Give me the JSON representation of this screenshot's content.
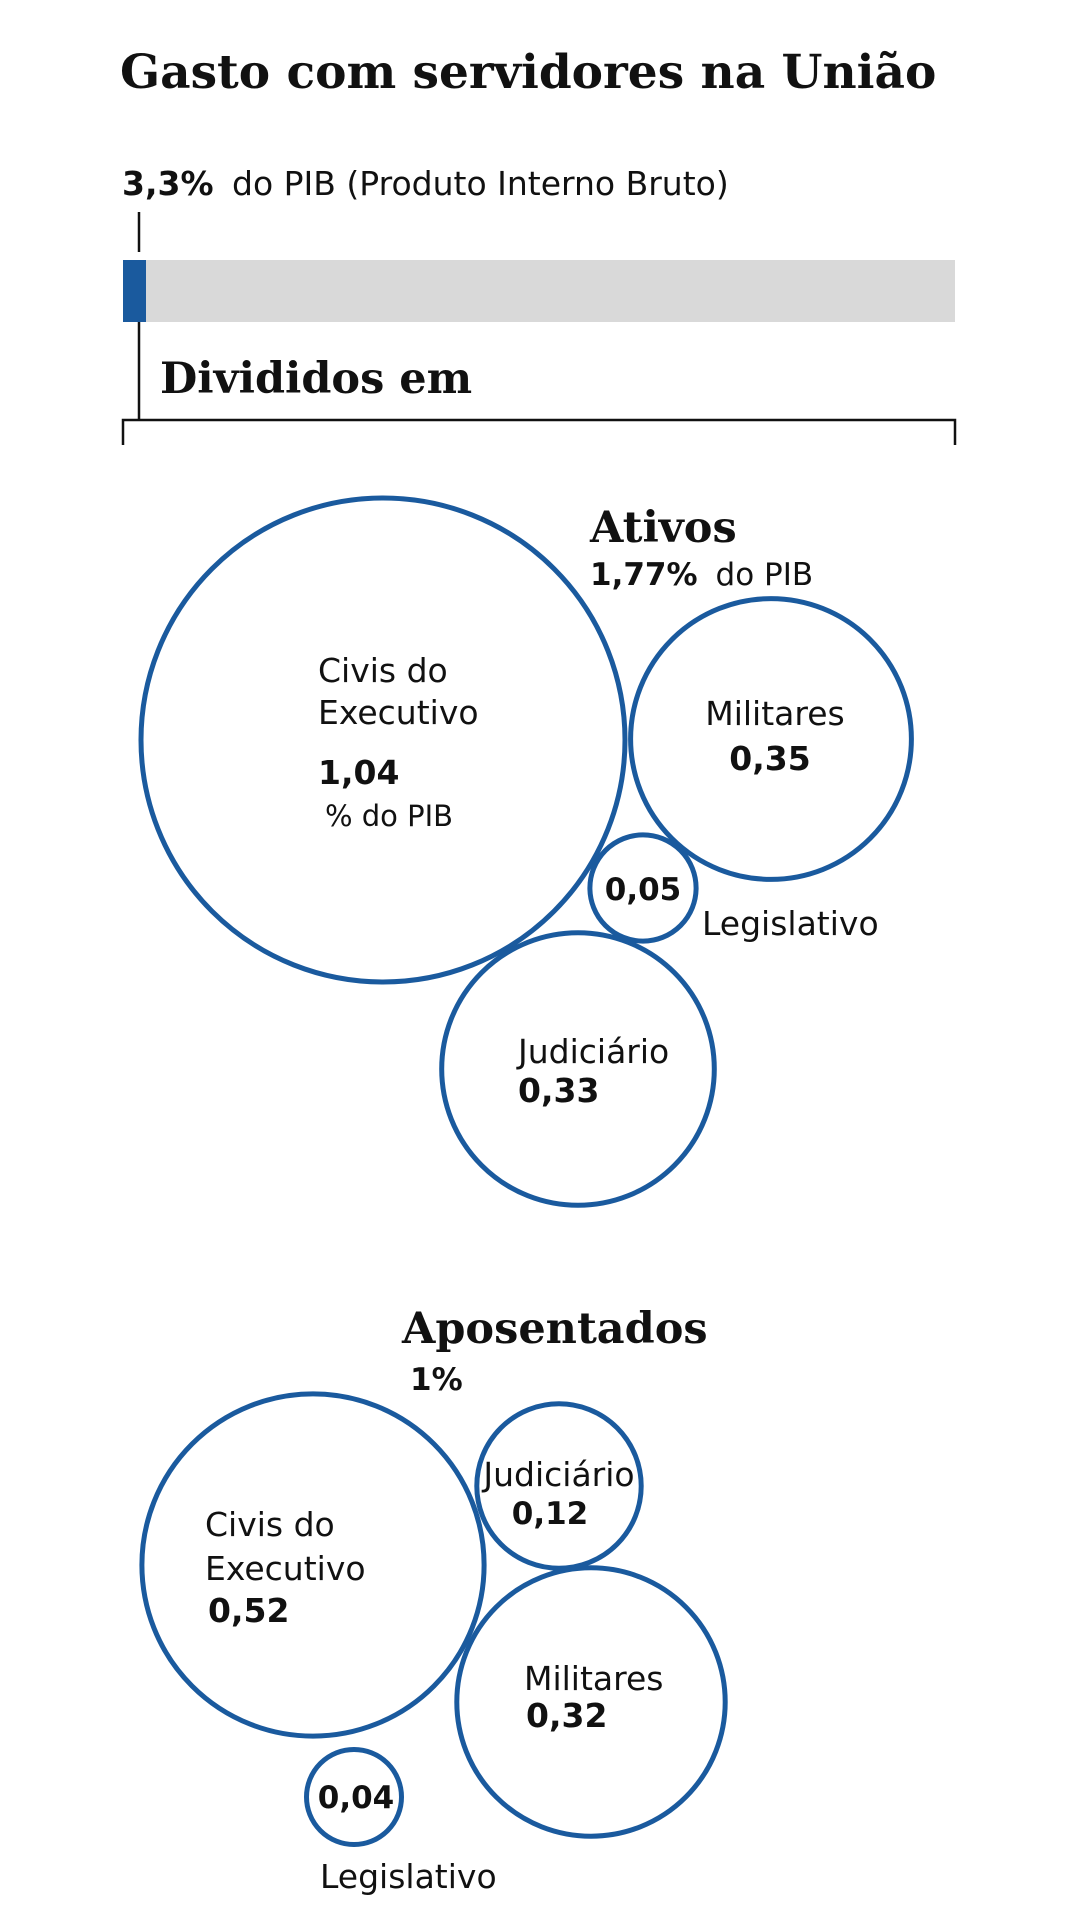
{
  "title": "Gasto com servidores na União",
  "total": {
    "value_label": "3,3%",
    "text": "do PIB (Produto Interno Bruto)",
    "fraction": 0.033
  },
  "divided_label": "Divididos em",
  "colors": {
    "accent": "#1a5a9e",
    "bar_track": "#d9d9d9",
    "ink": "#111111"
  },
  "chart_data": [
    {
      "type": "bubble",
      "title": "Ativos",
      "subtitle_value": "1,77%",
      "subtitle_text": "do PIB",
      "total": 1.77,
      "unit": "% do PIB",
      "items": [
        {
          "name_lines": [
            "Civis do",
            "Executivo"
          ],
          "value": 1.04,
          "value_label": "1,04",
          "unit_label": "% do PIB"
        },
        {
          "name_lines": [
            "Militares"
          ],
          "value": 0.35,
          "value_label": "0,35"
        },
        {
          "name_lines": [
            "Legislativo"
          ],
          "value": 0.05,
          "value_label": "0,05"
        },
        {
          "name_lines": [
            "Judiciário"
          ],
          "value": 0.33,
          "value_label": "0,33"
        }
      ]
    },
    {
      "type": "bubble",
      "title": "Aposentados",
      "subtitle_value": "1%",
      "total": 1,
      "unit": "% do PIB",
      "items": [
        {
          "name_lines": [
            "Civis do",
            "Executivo"
          ],
          "value": 0.52,
          "value_label": "0,52"
        },
        {
          "name_lines": [
            "Judiciário"
          ],
          "value": 0.12,
          "value_label": "0,12"
        },
        {
          "name_lines": [
            "Militares"
          ],
          "value": 0.32,
          "value_label": "0,32"
        },
        {
          "name_lines": [
            "Legislativo"
          ],
          "value": 0.04,
          "value_label": "0,04"
        }
      ]
    }
  ]
}
